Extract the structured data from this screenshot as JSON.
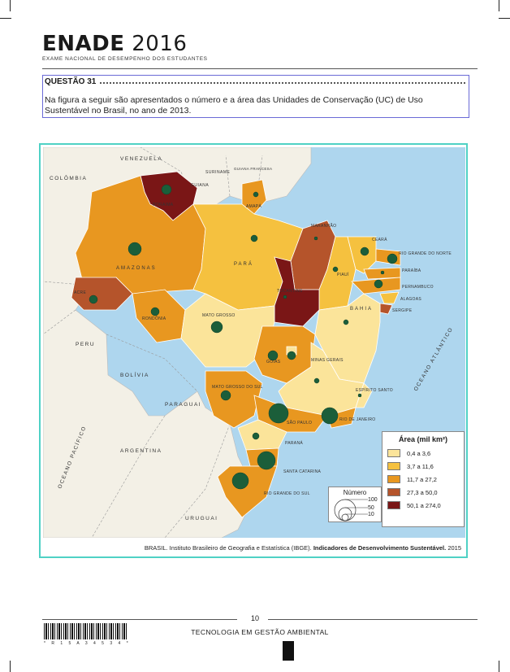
{
  "header": {
    "brand": "ENADE",
    "year": "2016",
    "subtitle": "EXAME NACIONAL DE DESEMPENHO DOS ESTUDANTES"
  },
  "question": {
    "title": "QUESTÃO 31",
    "text": "Na figura a seguir são apresentados o número e a área das Unidades de Conservação (UC) de Uso Sustentável no Brasil, no ano de 2013."
  },
  "map": {
    "neighbors": [
      "VENEZUELA",
      "COLÔMBIA",
      "SURINAME",
      "GUIANA FRANCESA",
      "GUIANA",
      "PERU",
      "BOLÍVIA",
      "PARAGUAI",
      "ARGENTINA",
      "URUGUAI"
    ],
    "oceans": [
      "OCEANO PACÍFICO",
      "OCEANO ATLÂNTICO"
    ],
    "states": [
      "ACRE",
      "AMAZONAS",
      "RORAIMA",
      "AMAPÁ",
      "PARÁ",
      "MARANHÃO",
      "PIAUÍ",
      "CEARÁ",
      "RIO GRANDE DO NORTE",
      "PARAÍBA",
      "PERNAMBUCO",
      "ALAGOAS",
      "SERGIPE",
      "BAHIA",
      "TOCANTINS",
      "RONDÔNIA",
      "MATO GROSSO",
      "GOIÁS",
      "MINAS GERAIS",
      "ESPÍRITO SANTO",
      "RIO DE JANEIRO",
      "SÃO PAULO",
      "PARANÁ",
      "SANTA CATARINA",
      "RIO GRANDE DO SUL",
      "MATO GROSSO DO SUL"
    ],
    "caption_source": "BRASIL. Instituto Brasileiro de Geografia e Estatística (IBGE).",
    "caption_title": "Indicadores de Desenvolvimento Sustentável.",
    "caption_year": "2015"
  },
  "legend_area": {
    "title": "Área (mil km²)",
    "classes": [
      {
        "label": "0,4 a 3,6",
        "color": "#fbe49a"
      },
      {
        "label": "3,7 a 11,6",
        "color": "#f5c13f"
      },
      {
        "label": "11,7 a 27,2",
        "color": "#e89720"
      },
      {
        "label": "27,3 a 50,0",
        "color": "#b5542b"
      },
      {
        "label": "50,1 a 274,0",
        "color": "#7a1616"
      }
    ]
  },
  "legend_number": {
    "title": "Número",
    "values": [
      "100",
      "50",
      "10"
    ]
  },
  "footer": {
    "page": "10",
    "course": "TECNOLOGIA EM GESTÃO AMBIENTAL",
    "barcode_text": "* R 1 5 A 3 4 5 3 4 *"
  }
}
